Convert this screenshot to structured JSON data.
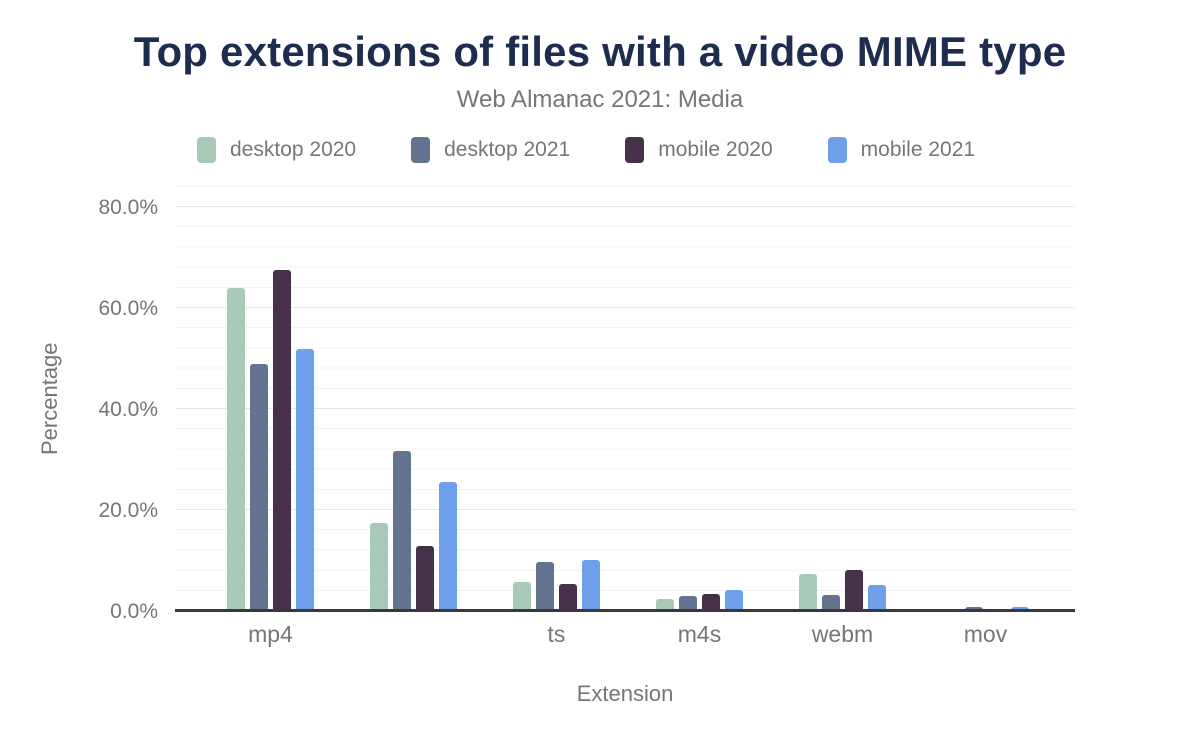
{
  "chart_data": {
    "type": "bar",
    "title": "Top extensions of files with a video MIME type",
    "subtitle": "Web Almanac 2021: Media",
    "xlabel": "Extension",
    "ylabel": "Percentage",
    "categories": [
      "mp4",
      "",
      "ts",
      "m4s",
      "webm",
      "mov"
    ],
    "series": [
      {
        "name": "desktop 2020",
        "color": "#a9c9b9",
        "values": [
          63.9,
          17.5,
          5.8,
          2.3,
          7.4,
          0.1
        ]
      },
      {
        "name": "desktop 2021",
        "color": "#62748f",
        "values": [
          49.0,
          31.7,
          9.7,
          2.9,
          3.1,
          0.7
        ]
      },
      {
        "name": "mobile 2020",
        "color": "#473049",
        "values": [
          67.6,
          12.9,
          5.4,
          3.3,
          8.2,
          0.1
        ]
      },
      {
        "name": "mobile 2021",
        "color": "#6e9fea",
        "values": [
          51.9,
          25.6,
          10.1,
          4.1,
          5.1,
          0.8
        ]
      }
    ],
    "ylim": [
      0,
      80
    ],
    "yticks": [
      {
        "value": 0,
        "label": "0.0%"
      },
      {
        "value": 20,
        "label": "20.0%"
      },
      {
        "value": 40,
        "label": "40.0%"
      },
      {
        "value": 60,
        "label": "60.0%"
      },
      {
        "value": 80,
        "label": "80.0%"
      }
    ],
    "grid": true,
    "legend_position": "top"
  },
  "colors": {
    "title": "#1e2d4f",
    "muted_text": "#767676",
    "axis_line": "#383838",
    "gridline_major": "#e7e7e7",
    "gridline_minor": "#f3f3f3"
  }
}
